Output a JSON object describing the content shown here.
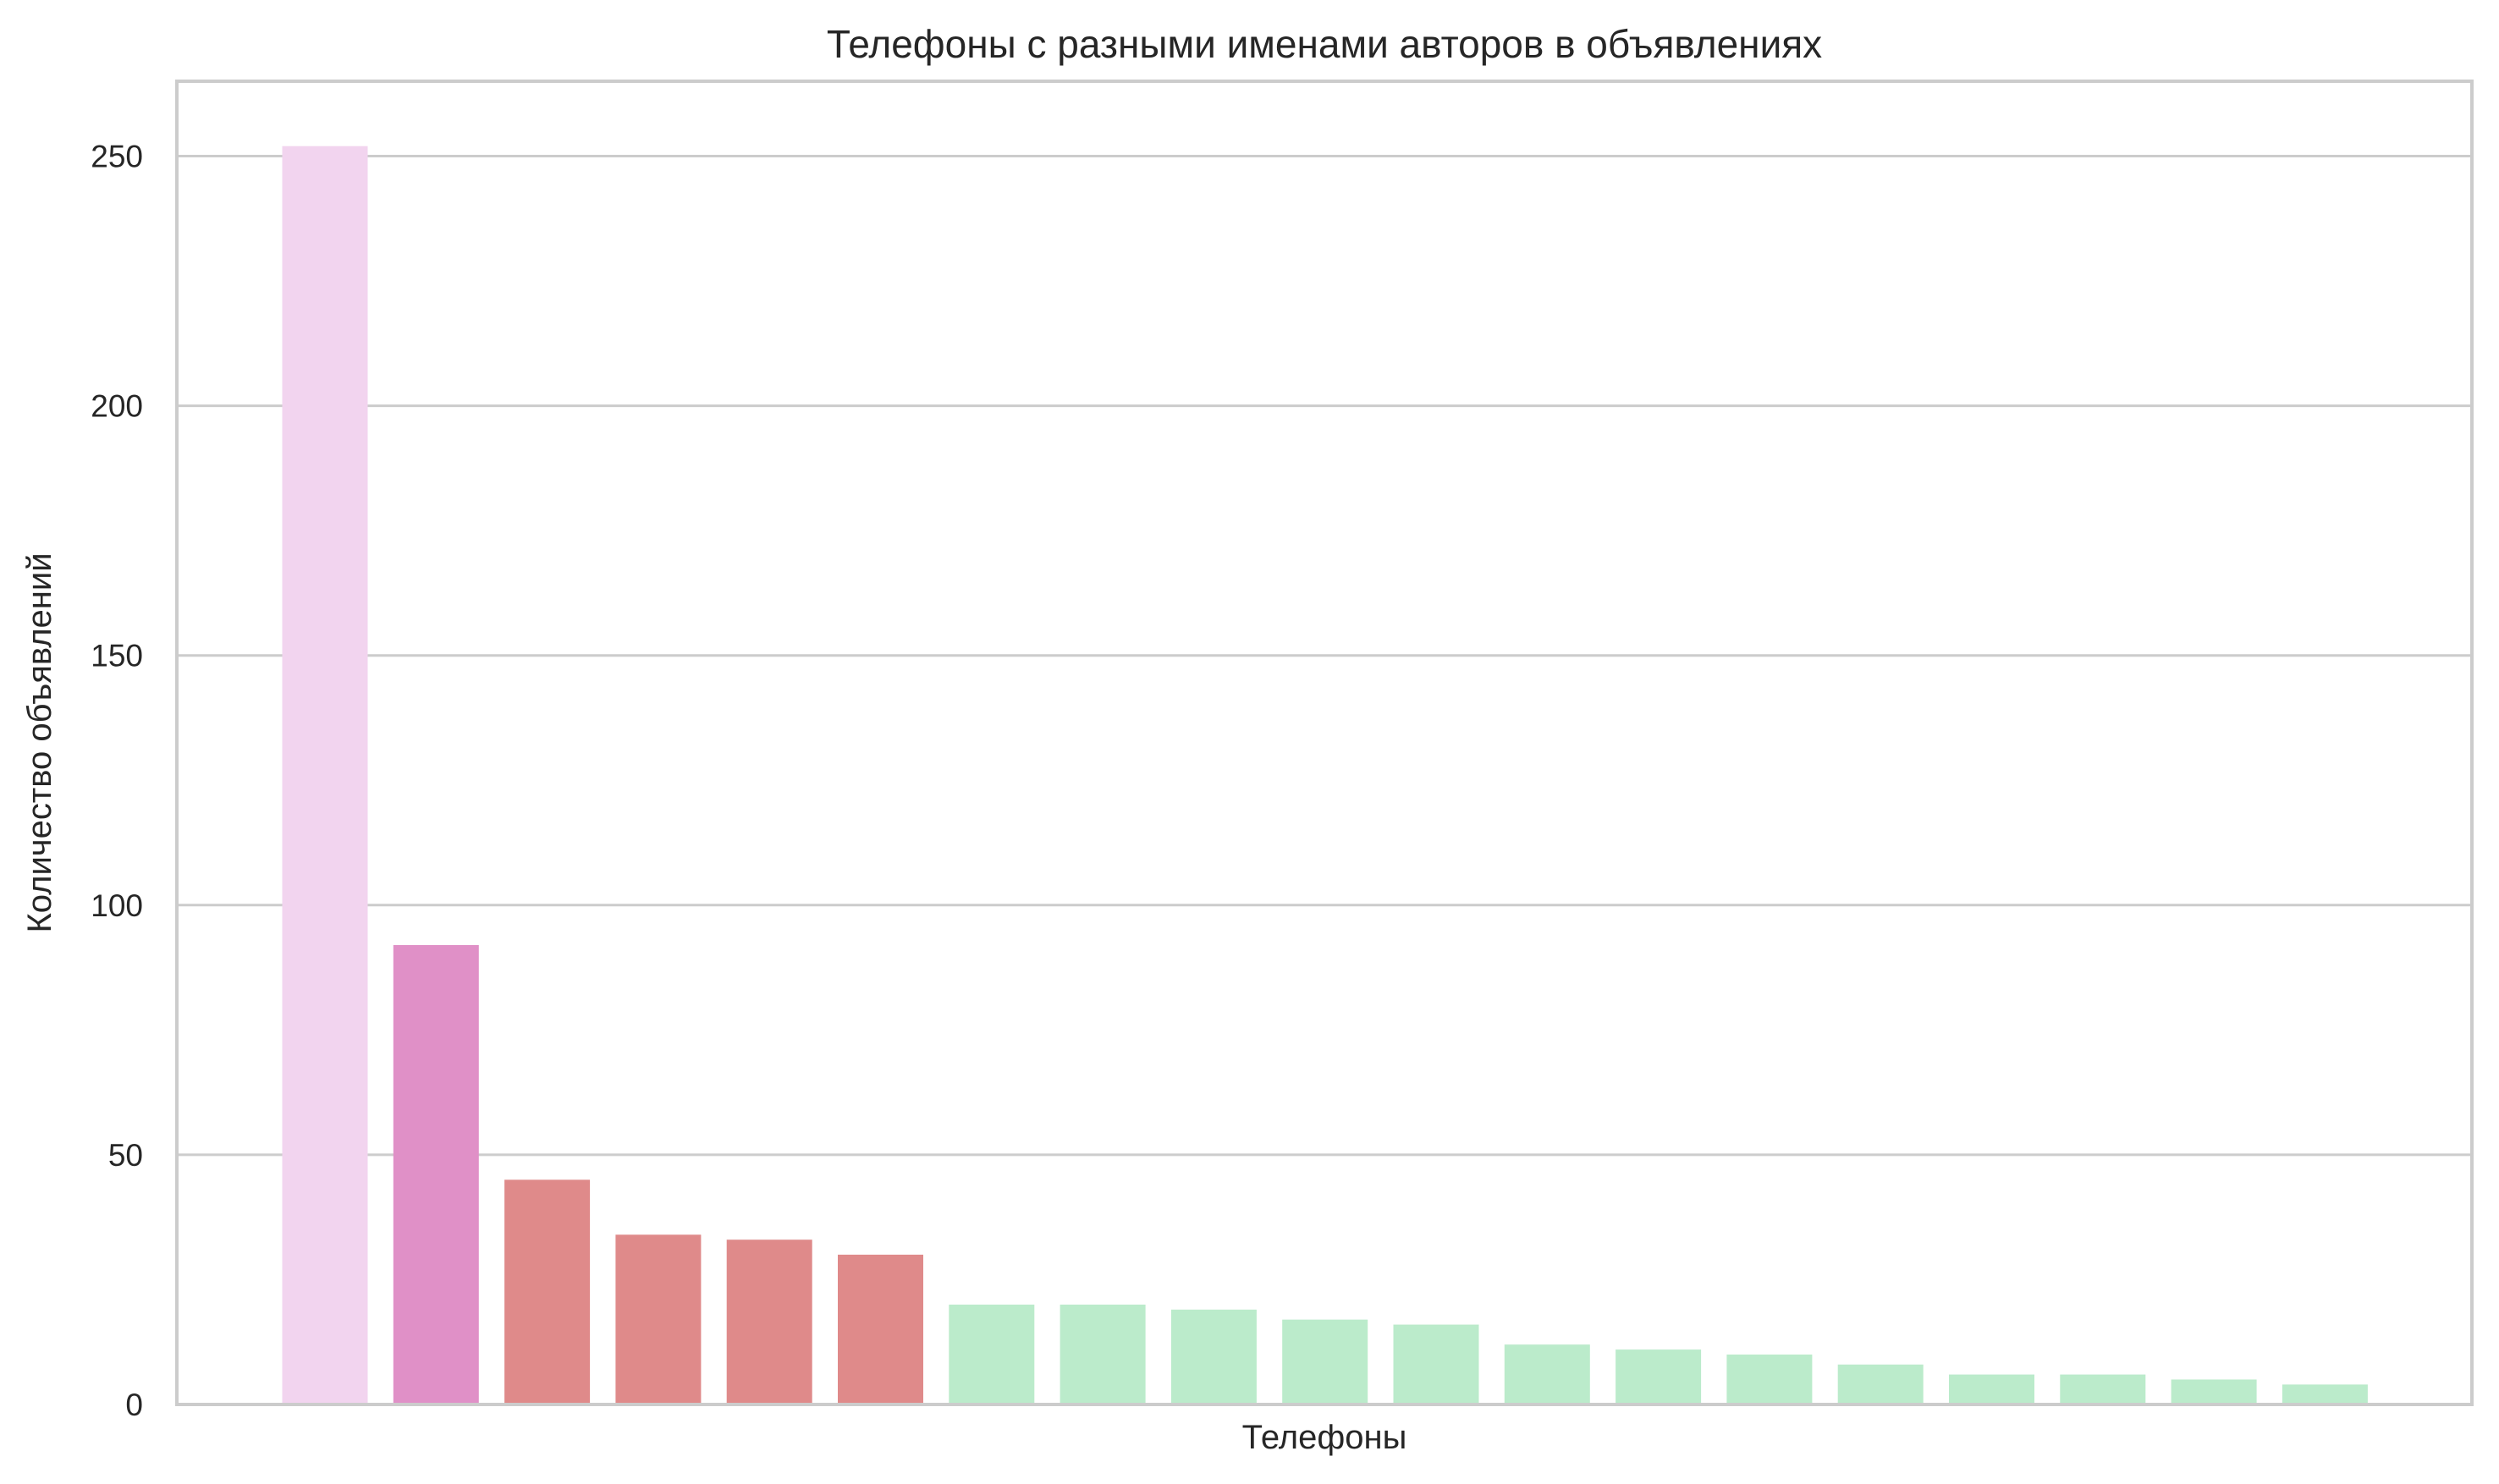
{
  "chart_data": {
    "type": "bar",
    "title": "Телефоны с разными именами авторов в объявлениях",
    "xlabel": "Телефоны",
    "ylabel": "Количество объявлений",
    "ylim": [
      0,
      265
    ],
    "yticks": [
      0,
      50,
      100,
      150,
      200,
      250
    ],
    "grid": "horizontal",
    "legend": "none",
    "values": [
      252,
      92,
      45,
      34,
      33,
      30,
      20,
      20,
      19,
      17,
      16,
      12,
      11,
      10,
      8,
      6,
      6,
      5,
      4
    ],
    "colors": [
      "#f2d4ef",
      "#e090c7",
      "#df8a8a",
      "#df8a8a",
      "#df8a8a",
      "#df8a8a",
      "#bbebcb",
      "#bbebcb",
      "#bbebcb",
      "#bbebcb",
      "#bbebcb",
      "#bbebcb",
      "#bbebcb",
      "#bbebcb",
      "#bbebcb",
      "#bbebcb",
      "#bbebcb",
      "#bbebcb",
      "#bbebcb"
    ]
  }
}
